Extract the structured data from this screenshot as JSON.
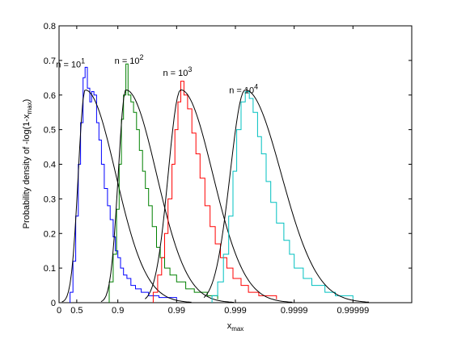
{
  "chart_data": {
    "type": "line",
    "title": "",
    "xlabel": "x",
    "xlabel_sub": "max",
    "ylabel": "Probability density of -log(1-x",
    "ylabel_sub": "max",
    "ylabel_end": ")",
    "x_scale": "-log10(1-x)",
    "xlim": [
      0,
      1.0
    ],
    "ylim": [
      0,
      0.8
    ],
    "x_ticks": [
      {
        "value": 0,
        "label": "0"
      },
      {
        "value": 0.5,
        "label": "0.5"
      },
      {
        "value": 0.9,
        "label": "0.9"
      },
      {
        "value": 0.99,
        "label": "0.99"
      },
      {
        "value": 0.999,
        "label": "0.999"
      },
      {
        "value": 0.9999,
        "label": "0.9999"
      },
      {
        "value": 0.99999,
        "label": "0.99999"
      }
    ],
    "y_ticks": [
      {
        "value": 0,
        "label": "0"
      },
      {
        "value": 0.1,
        "label": "0.1"
      },
      {
        "value": 0.2,
        "label": "0.2"
      },
      {
        "value": 0.3,
        "label": "0.3"
      },
      {
        "value": 0.4,
        "label": "0.4"
      },
      {
        "value": 0.5,
        "label": "0.5"
      },
      {
        "value": 0.6,
        "label": "0.6"
      },
      {
        "value": 0.7,
        "label": "0.7"
      },
      {
        "value": 0.8,
        "label": "0.8"
      }
    ],
    "grid": false,
    "legend": "none",
    "series": [
      {
        "label_base": "n = 10",
        "label_exp": "1",
        "color": "#0000ff",
        "fit_color": "#000000",
        "histogram": [
          [
            0.35,
            0.03
          ],
          [
            0.42,
            0.12
          ],
          [
            0.48,
            0.25
          ],
          [
            0.53,
            0.4
          ],
          [
            0.57,
            0.52
          ],
          [
            0.61,
            0.65
          ],
          [
            0.64,
            0.68
          ],
          [
            0.67,
            0.62
          ],
          [
            0.7,
            0.58
          ],
          [
            0.72,
            0.61
          ],
          [
            0.745,
            0.6
          ],
          [
            0.77,
            0.52
          ],
          [
            0.79,
            0.47
          ],
          [
            0.81,
            0.4
          ],
          [
            0.83,
            0.33
          ],
          [
            0.85,
            0.28
          ],
          [
            0.865,
            0.24
          ],
          [
            0.88,
            0.19
          ],
          [
            0.89,
            0.15
          ],
          [
            0.9,
            0.13
          ],
          [
            0.91,
            0.1
          ],
          [
            0.92,
            0.08
          ],
          [
            0.93,
            0.07
          ],
          [
            0.94,
            0.05
          ],
          [
            0.95,
            0.04
          ],
          [
            0.96,
            0.03
          ],
          [
            0.97,
            0.02
          ],
          [
            0.98,
            0.015
          ],
          [
            0.99,
            0.01
          ]
        ]
      },
      {
        "label_base": "n = 10",
        "label_exp": "2",
        "color": "#008000",
        "fit_color": "#000000",
        "histogram": [
          [
            0.86,
            0.06
          ],
          [
            0.88,
            0.14
          ],
          [
            0.895,
            0.27
          ],
          [
            0.905,
            0.4
          ],
          [
            0.913,
            0.53
          ],
          [
            0.92,
            0.6
          ],
          [
            0.927,
            0.69
          ],
          [
            0.933,
            0.6
          ],
          [
            0.94,
            0.58
          ],
          [
            0.946,
            0.55
          ],
          [
            0.952,
            0.5
          ],
          [
            0.957,
            0.44
          ],
          [
            0.962,
            0.38
          ],
          [
            0.966,
            0.33
          ],
          [
            0.97,
            0.28
          ],
          [
            0.974,
            0.22
          ],
          [
            0.978,
            0.16
          ],
          [
            0.981,
            0.13
          ],
          [
            0.984,
            0.1
          ],
          [
            0.987,
            0.08
          ],
          [
            0.99,
            0.06
          ],
          [
            0.993,
            0.04
          ],
          [
            0.995,
            0.03
          ],
          [
            0.997,
            0.02
          ],
          [
            0.998,
            0.01
          ]
        ]
      },
      {
        "label_base": "n = 10",
        "label_exp": "3",
        "color": "#ff0000",
        "fit_color": "#000000",
        "histogram": [
          [
            0.975,
            0.03
          ],
          [
            0.979,
            0.08
          ],
          [
            0.982,
            0.13
          ],
          [
            0.984,
            0.2
          ],
          [
            0.986,
            0.3
          ],
          [
            0.988,
            0.4
          ],
          [
            0.9893,
            0.5
          ],
          [
            0.9905,
            0.58
          ],
          [
            0.9915,
            0.64
          ],
          [
            0.9925,
            0.6
          ],
          [
            0.9935,
            0.56
          ],
          [
            0.9945,
            0.49
          ],
          [
            0.9953,
            0.43
          ],
          [
            0.996,
            0.36
          ],
          [
            0.9967,
            0.28
          ],
          [
            0.9973,
            0.22
          ],
          [
            0.9978,
            0.17
          ],
          [
            0.9982,
            0.13
          ],
          [
            0.9986,
            0.1
          ],
          [
            0.9989,
            0.07
          ],
          [
            0.9992,
            0.05
          ],
          [
            0.9994,
            0.03
          ],
          [
            0.9996,
            0.02
          ],
          [
            0.9998,
            0.01
          ]
        ]
      },
      {
        "label_base": "n = 10",
        "label_exp": "4",
        "color": "#00c0c0",
        "fit_color": "#000000",
        "histogram": [
          [
            0.9975,
            0.02
          ],
          [
            0.998,
            0.06
          ],
          [
            0.9984,
            0.14
          ],
          [
            0.9987,
            0.25
          ],
          [
            0.9989,
            0.38
          ],
          [
            0.99905,
            0.5
          ],
          [
            0.9992,
            0.58
          ],
          [
            0.99932,
            0.61
          ],
          [
            0.99942,
            0.59
          ],
          [
            0.9995,
            0.55
          ],
          [
            0.99958,
            0.48
          ],
          [
            0.99964,
            0.43
          ],
          [
            0.9997,
            0.35
          ],
          [
            0.99975,
            0.29
          ],
          [
            0.9998,
            0.23
          ],
          [
            0.99985,
            0.18
          ],
          [
            0.99988,
            0.14
          ],
          [
            0.9999,
            0.1
          ],
          [
            0.99993,
            0.07
          ],
          [
            0.99995,
            0.05
          ],
          [
            0.99997,
            0.03
          ],
          [
            0.99998,
            0.02
          ],
          [
            0.99999,
            0.01
          ]
        ]
      }
    ]
  }
}
